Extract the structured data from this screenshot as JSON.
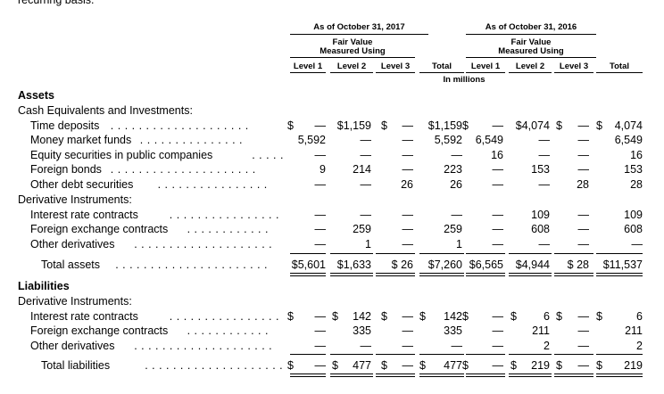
{
  "intro_fragment": "recurring basis.",
  "header": {
    "period_2017": "As of October 31, 2017",
    "period_2016": "As of October 31, 2016",
    "fv_2017": [
      "Fair Value",
      "Measured Using"
    ],
    "fv_2016": [
      "Fair Value",
      "Measured Using"
    ],
    "cols": [
      "Level 1",
      "Level 2",
      "Level 3",
      "Total",
      "Level 1",
      "Level 2",
      "Level 3",
      "Total"
    ],
    "units": "In millions"
  },
  "assets_heading": "Assets",
  "cash_heading": "Cash Equivalents and Investments:",
  "derivatives_heading": "Derivative Instruments:",
  "liabilities_heading": "Liabilities",
  "liab_derivatives_heading": "Derivative Instruments:",
  "rows": [
    {
      "label": "Time deposits",
      "dots": ". . . . . . . . . . . . . . . . . . . .",
      "vals": [
        "—",
        "$1,159",
        "—",
        "$1,159",
        "—",
        "$4,074",
        "—",
        "4,074"
      ],
      "cur": [
        true,
        false,
        true,
        false,
        true,
        false,
        true,
        true
      ]
    },
    {
      "label": "Money market funds",
      "dots": ". . . . . . . . . . . . . . .",
      "vals": [
        "5,592",
        "—",
        "—",
        "5,592",
        "6,549",
        "—",
        "—",
        "6,549"
      ]
    },
    {
      "label": "Equity securities in public companies",
      "dots": ". . . . .",
      "vals": [
        "—",
        "—",
        "—",
        "—",
        "16",
        "—",
        "—",
        "16"
      ]
    },
    {
      "label": "Foreign bonds",
      "dots": ". . . . . . . . . . . . . . . . . . . . .",
      "vals": [
        "9",
        "214",
        "—",
        "223",
        "—",
        "153",
        "—",
        "153"
      ]
    },
    {
      "label": "Other debt securities",
      "dots": ". . . . . . . . . . . . . . . .",
      "vals": [
        "—",
        "—",
        "26",
        "26",
        "—",
        "—",
        "28",
        "28"
      ]
    },
    {
      "label": "Interest rate contracts",
      "dots": ". . . . . . . . . . . . . . . .",
      "vals": [
        "—",
        "—",
        "—",
        "—",
        "—",
        "109",
        "—",
        "109"
      ]
    },
    {
      "label": "Foreign exchange contracts",
      "dots": ". . . . . . . . . . . .",
      "vals": [
        "—",
        "259",
        "—",
        "259",
        "—",
        "608",
        "—",
        "608"
      ]
    },
    {
      "label": "Other derivatives",
      "dots": ". . . . . . . . . . . . . . . . . . . .",
      "vals": [
        "—",
        "1",
        "—",
        "1",
        "—",
        "—",
        "—",
        "—"
      ]
    }
  ],
  "total_assets": {
    "label": "Total assets",
    "dots": ". . . . . . . . . . . . . . . . . . . . . .",
    "vals": [
      "$5,601",
      "$1,633",
      "$ 26",
      "$7,260",
      "$6,565",
      "$4,944",
      "$ 28",
      "$11,537"
    ]
  },
  "liab_rows": [
    {
      "label": "Interest rate contracts",
      "dots": ". . . . . . . . . . . . . . . .",
      "vals": [
        "—",
        "142",
        "—",
        "142",
        "—",
        "6",
        "—",
        "6"
      ]
    },
    {
      "label": "Foreign exchange contracts",
      "dots": ". . . . . . . . . . . .",
      "vals": [
        "—",
        "335",
        "—",
        "335",
        "—",
        "211",
        "—",
        "211"
      ]
    },
    {
      "label": "Other derivatives",
      "dots": ". . . . . . . . . . . . . . . . . . . .",
      "vals": [
        "—",
        "—",
        "—",
        "—",
        "—",
        "2",
        "—",
        "2"
      ]
    }
  ],
  "total_liabilities": {
    "label": "Total liabilities",
    "dots": ". . . . . . . . . . . . . . . . . . . .",
    "vals": [
      "—",
      "477",
      "—",
      "477",
      "—",
      "219",
      "—",
      "219"
    ]
  },
  "dollar": "$"
}
